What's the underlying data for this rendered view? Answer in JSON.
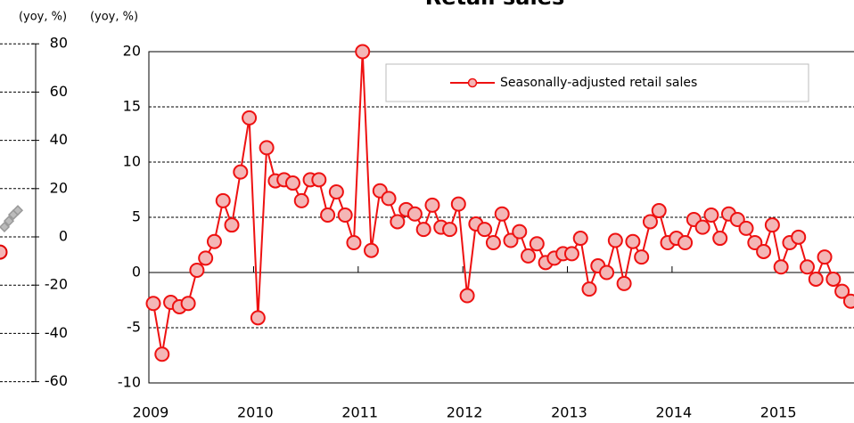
{
  "chart_data": [
    {
      "type": "line",
      "axis_label": "(yoy, %)",
      "categories": [
        null,
        null,
        null,
        null,
        null
      ],
      "series": [
        {
          "color": "#e00000",
          "marker_fill": "#f4b6b6",
          "marker": "circle",
          "values": [
            -6.3,
            null,
            null,
            null,
            null
          ]
        },
        {
          "color": "#999999",
          "marker_fill": "#bbbbbb",
          "marker": "diamond",
          "values": [
            null,
            4.1,
            6.6,
            9.2,
            11
          ]
        }
      ],
      "ylim": [
        -60,
        80
      ],
      "yticks": [
        -60,
        -40,
        -20,
        0,
        20,
        40,
        60,
        80
      ],
      "grid": true
    },
    {
      "type": "line",
      "title": "Retail sales",
      "axis_label": "(yoy, %)",
      "categories": [
        "2009",
        null,
        null,
        null,
        null,
        null,
        null,
        null,
        null,
        null,
        null,
        null,
        "2010",
        null,
        null,
        null,
        null,
        null,
        null,
        null,
        null,
        null,
        null,
        null,
        "2011",
        null,
        null,
        null,
        null,
        null,
        null,
        null,
        null,
        null,
        null,
        null,
        "2012",
        null,
        null,
        null,
        null,
        null,
        null,
        null,
        null,
        null,
        null,
        null,
        "2013",
        null,
        null,
        null,
        null,
        null,
        null,
        null,
        null,
        null,
        null,
        null,
        "2014",
        null,
        null,
        null,
        null,
        null,
        null,
        null,
        null,
        null,
        null,
        null,
        "2015",
        null,
        null,
        null,
        null,
        null,
        null,
        null,
        null
      ],
      "series": [
        {
          "name": "Seasonally-adjusted retail sales",
          "color": "#ee1111",
          "marker_fill": "#f4b6b6",
          "marker": "circle",
          "values": [
            -2.8,
            -7.4,
            -2.7,
            -3.1,
            -2.8,
            0.2,
            1.3,
            2.8,
            6.5,
            4.3,
            9.1,
            14.0,
            -4.1,
            11.3,
            8.3,
            8.4,
            8.1,
            6.5,
            8.4,
            8.4,
            5.2,
            7.3,
            5.2,
            2.7,
            20.0,
            2.0,
            7.4,
            6.7,
            4.6,
            5.7,
            5.3,
            3.9,
            6.1,
            4.1,
            3.9,
            6.2,
            -2.1,
            4.4,
            3.9,
            2.7,
            5.3,
            2.9,
            3.7,
            1.5,
            2.6,
            0.9,
            1.3,
            1.7,
            1.7,
            3.1,
            -1.5,
            0.6,
            0.0,
            2.9,
            -1.0,
            2.8,
            1.4,
            4.6,
            5.6,
            2.7,
            3.1,
            2.7,
            4.8,
            4.1,
            5.2,
            3.1,
            5.3,
            4.8,
            4.0,
            2.7,
            1.9,
            4.3,
            0.5,
            2.7,
            3.2,
            0.5,
            -0.6,
            1.4,
            -0.6,
            -1.7,
            -2.6
          ]
        }
      ],
      "ylim": [
        -10,
        20
      ],
      "yticks": [
        -10,
        -5,
        0,
        5,
        10,
        15,
        20
      ],
      "grid": true,
      "legend": "top-right"
    }
  ]
}
